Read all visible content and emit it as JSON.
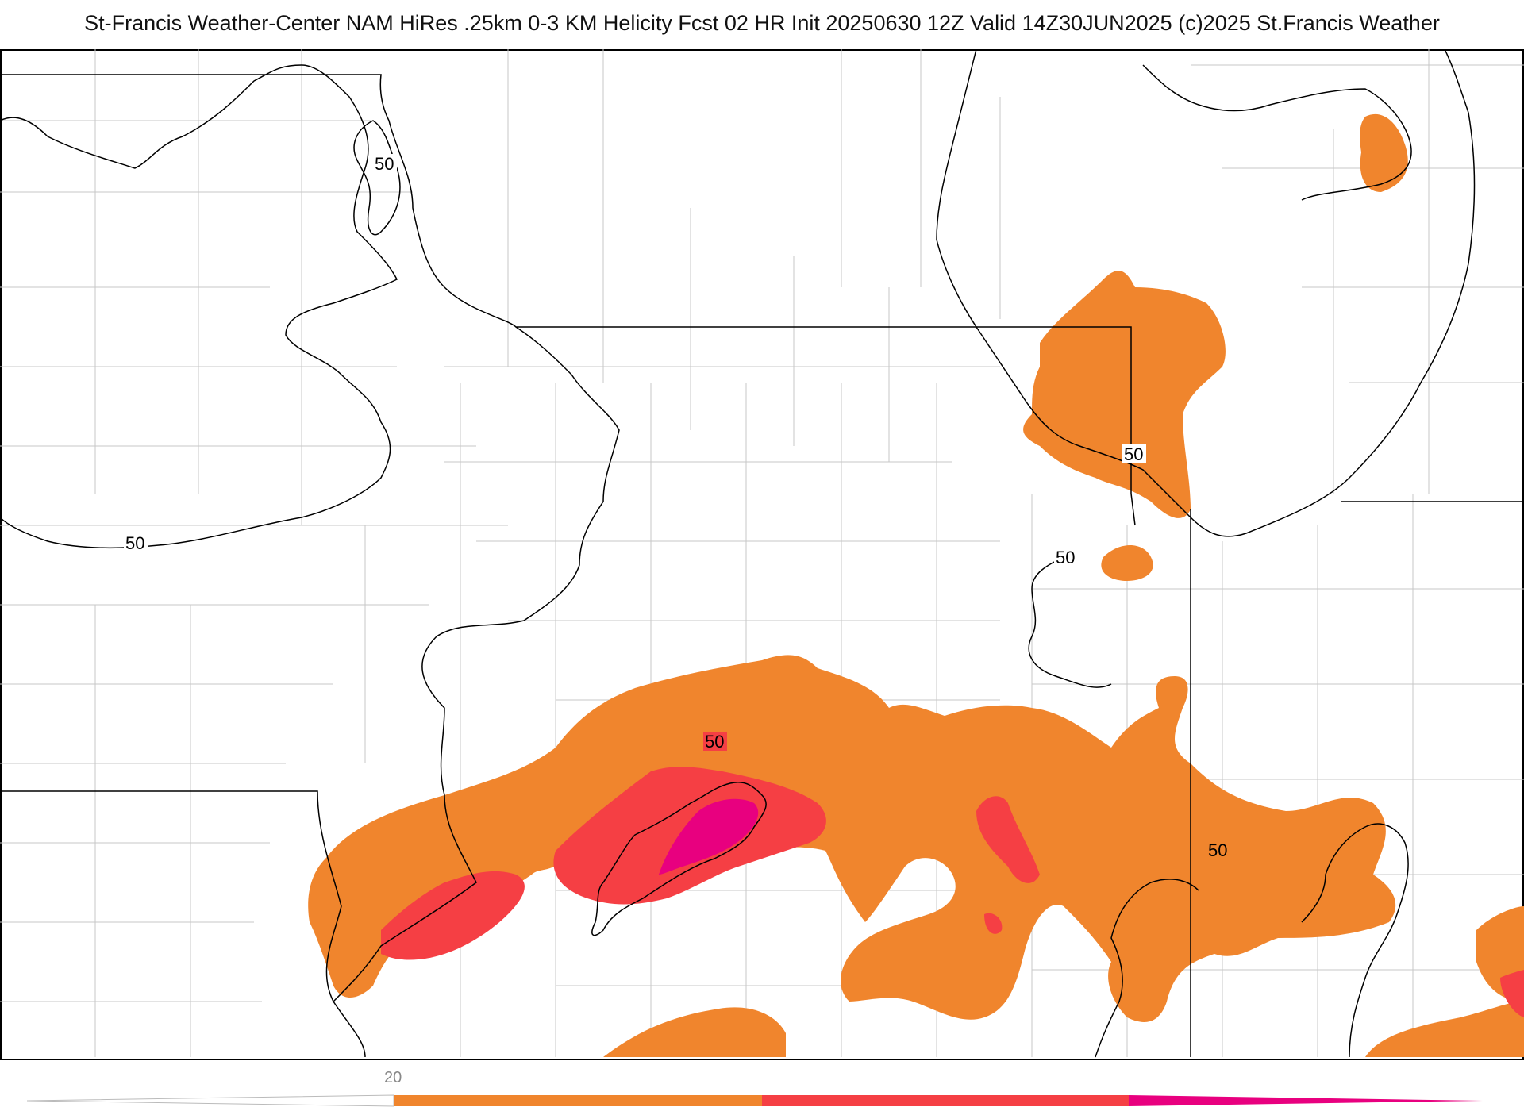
{
  "title": "St-Francis Weather-Center NAM HiRes .25km 0-3 KM Helicity Fcst 02 HR Init 20250630 12Z  Valid 14Z30JUN2025    (c)2025 St.Francis Weather",
  "contour_labels": [
    "50",
    "50",
    "50",
    "50",
    "50",
    "50"
  ],
  "colorbar": {
    "tick_label": "20",
    "colors": {
      "level1": "#f0852d",
      "level2": "#f53f44",
      "level3": "#e8007f"
    }
  },
  "colors": {
    "state_border": "#000000",
    "county_border": "#bdbdbd",
    "contour": "#000000"
  }
}
